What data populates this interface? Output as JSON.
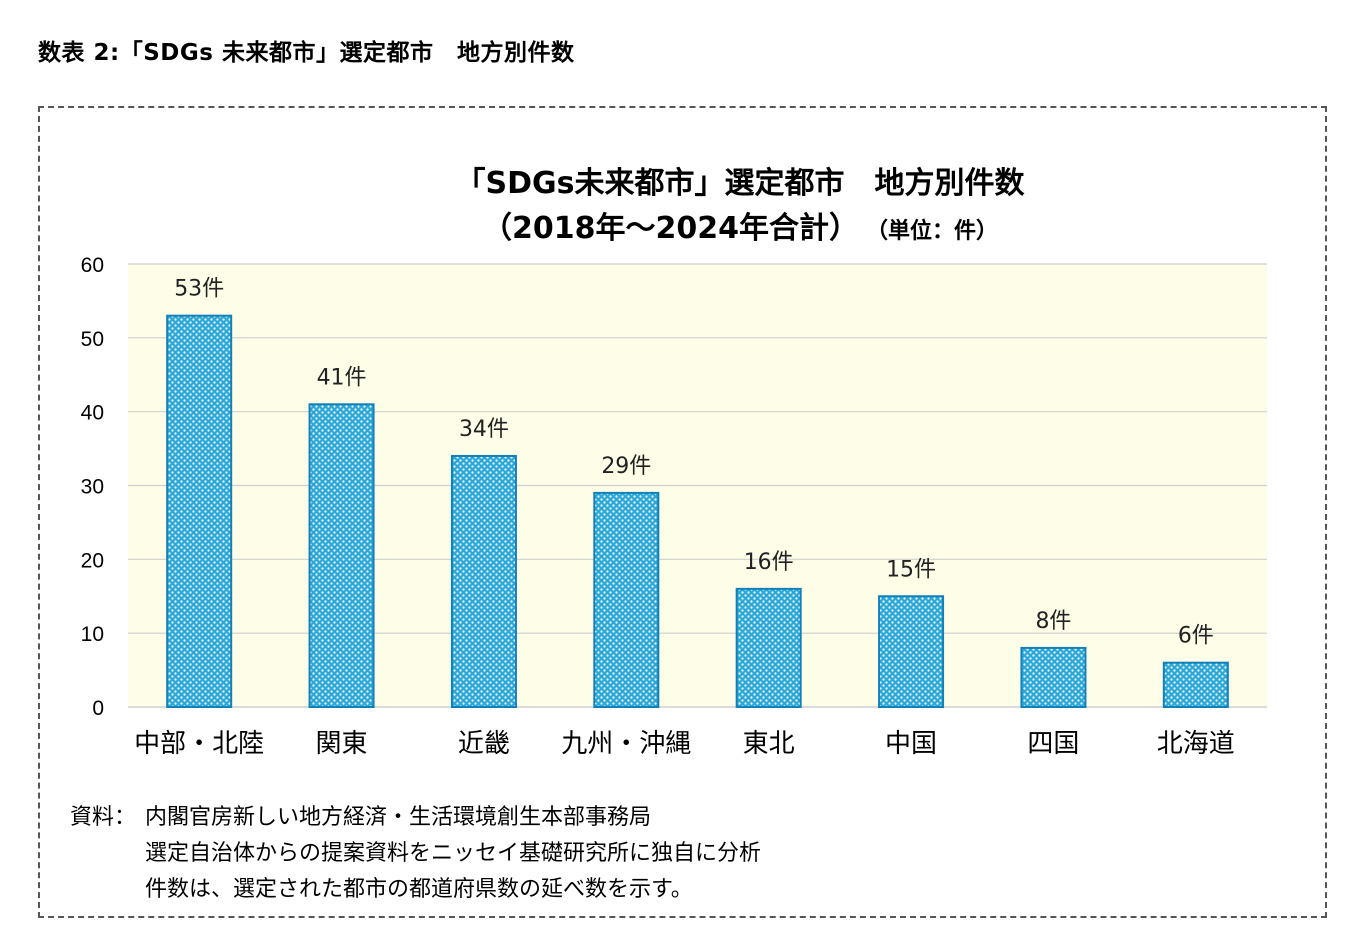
{
  "page_heading": "数表 2:「SDGs 未来都市」選定都市　地方別件数",
  "chart_data": {
    "type": "bar",
    "title": "「SDGs未来都市」選定都市　地方別件数",
    "subtitle": "（2018年～2024年合計）",
    "unit_note": "（単位：件）",
    "categories": [
      "中部・北陸",
      "関東",
      "近畿",
      "九州・沖縄",
      "東北",
      "中国",
      "四国",
      "北海道"
    ],
    "values": [
      53,
      41,
      34,
      29,
      16,
      15,
      8,
      6
    ],
    "data_labels": [
      "53件",
      "41件",
      "34件",
      "29件",
      "16件",
      "15件",
      "8件",
      "6件"
    ],
    "ylim": [
      0,
      60
    ],
    "yticks": [
      "0",
      "10",
      "20",
      "30",
      "40",
      "50",
      "60"
    ],
    "grid": true,
    "colors": {
      "plot_background": "#fdfde8",
      "bar_fill": "#2aa8d8",
      "bar_edge": "#1480b8",
      "grid": "#cfcfcf"
    }
  },
  "source": {
    "label": "資料：",
    "lines": [
      "内閣官房新しい地方経済・生活環境創生本部事務局",
      "選定自治体からの提案資料をニッセイ基礎研究所に独自に分析",
      "件数は、選定された都市の都道府県数の延べ数を示す。"
    ]
  }
}
